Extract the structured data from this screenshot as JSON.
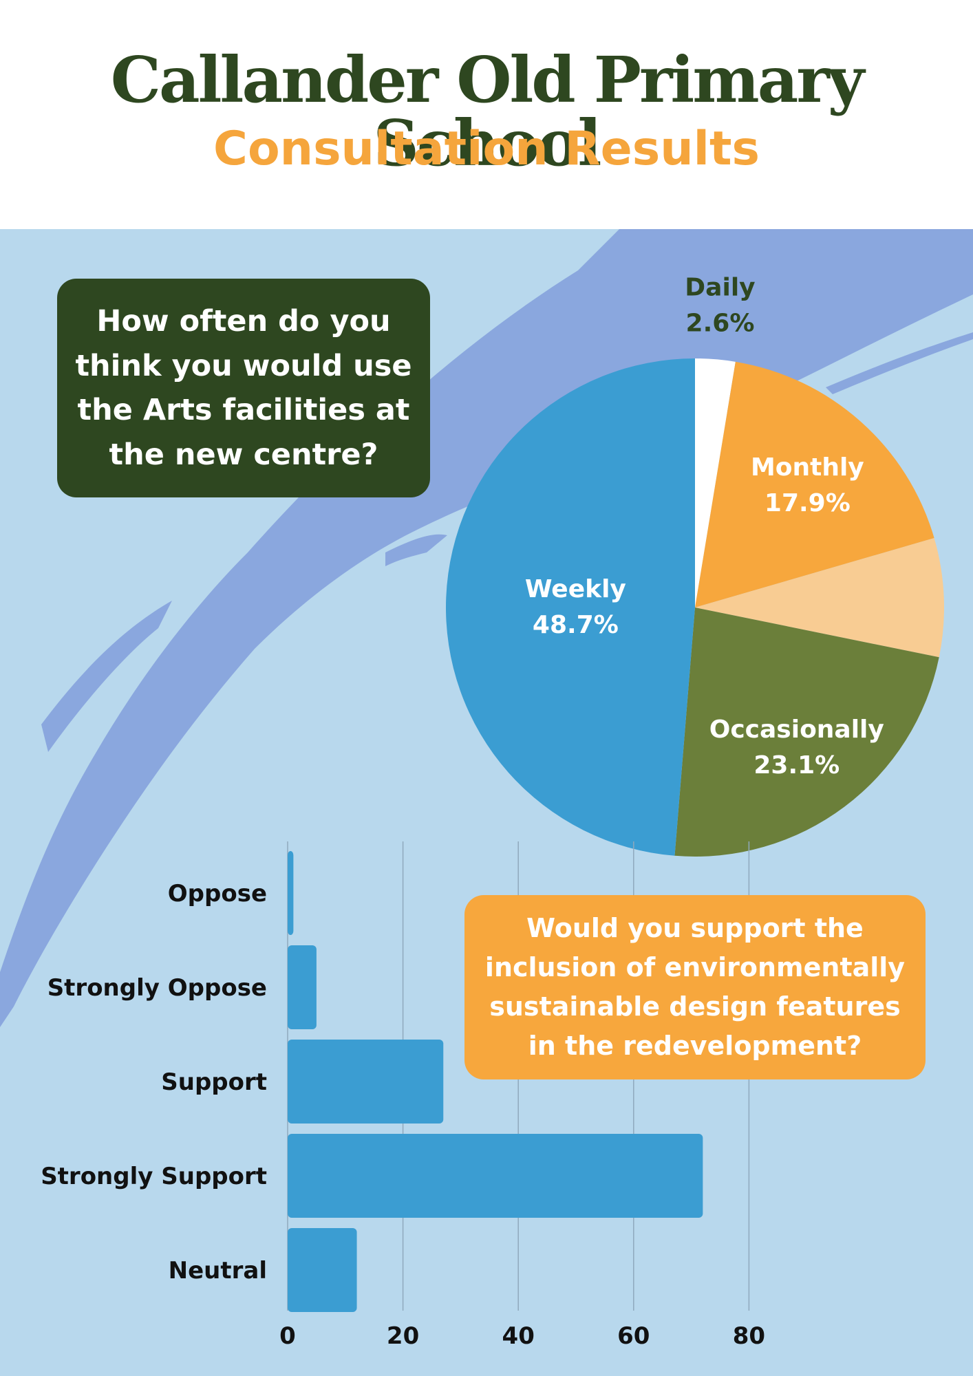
{
  "header": {
    "title": "Callander Old Primary School",
    "subtitle": "Consultation Results"
  },
  "colors": {
    "dark_green": "#2e4720",
    "orange": "#f5a53c",
    "light_orange": "#f8cc93",
    "olive": "#6b7f3a",
    "blue": "#3b9dd2",
    "panel": "#b8d8ed",
    "brush": "#8aa7de",
    "white": "#ffffff"
  },
  "questions": {
    "q1": "How often do you think you would use the Arts facilities at the new centre?",
    "q2": "Would you support the inclusion of environmentally sustainable design features in the redevelopment?"
  },
  "chart_data": [
    {
      "type": "pie",
      "title": "",
      "slices": [
        {
          "label": "Daily",
          "value": 2.6,
          "display": "2.6%",
          "color": "#ffffff",
          "label_color": "#2e4720"
        },
        {
          "label": "Monthly",
          "value": 17.9,
          "display": "17.9%",
          "color": "#f7a73d",
          "label_color": "#ffffff"
        },
        {
          "label": "",
          "value": 7.7,
          "display": "",
          "color": "#f8cc93",
          "label_color": "#ffffff"
        },
        {
          "label": "Occasionally",
          "value": 23.1,
          "display": "23.1%",
          "color": "#6b7f3a",
          "label_color": "#ffffff"
        },
        {
          "label": "Weekly",
          "value": 48.7,
          "display": "48.7%",
          "color": "#3b9dd2",
          "label_color": "#ffffff"
        }
      ]
    },
    {
      "type": "bar",
      "orientation": "horizontal",
      "title": "",
      "categories": [
        "Oppose",
        "Strongly Oppose",
        "Support",
        "Strongly Support",
        "Neutral"
      ],
      "values": [
        1,
        5,
        27,
        72,
        12
      ],
      "xlim": [
        0,
        100
      ],
      "xticks": [
        0,
        20,
        40,
        60,
        80
      ],
      "grid": true,
      "color": "#3b9dd2"
    }
  ]
}
